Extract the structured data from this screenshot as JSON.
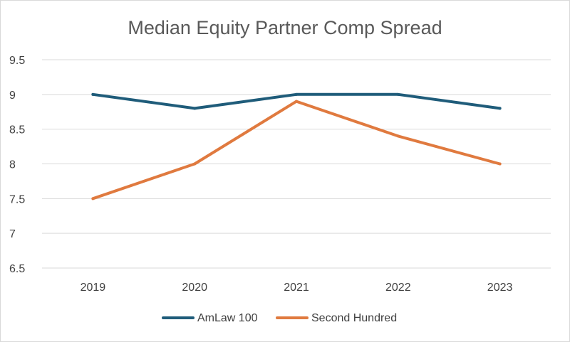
{
  "chart_data": {
    "type": "line",
    "title": "Median Equity Partner Comp Spread",
    "xlabel": "",
    "ylabel": "",
    "categories": [
      "2019",
      "2020",
      "2021",
      "2022",
      "2023"
    ],
    "y_ticks": [
      "6.5",
      "7",
      "7.5",
      "8",
      "8.5",
      "9",
      "9.5"
    ],
    "ylim": [
      6.5,
      9.5
    ],
    "grid": true,
    "legend_position": "bottom",
    "series": [
      {
        "name": "AmLaw 100",
        "color": "#1f5c7a",
        "values": [
          9.0,
          8.8,
          9.0,
          9.0,
          8.8
        ]
      },
      {
        "name": "Second Hundred",
        "color": "#e07a3f",
        "values": [
          7.5,
          8.0,
          8.9,
          8.4,
          8.0
        ]
      }
    ]
  }
}
